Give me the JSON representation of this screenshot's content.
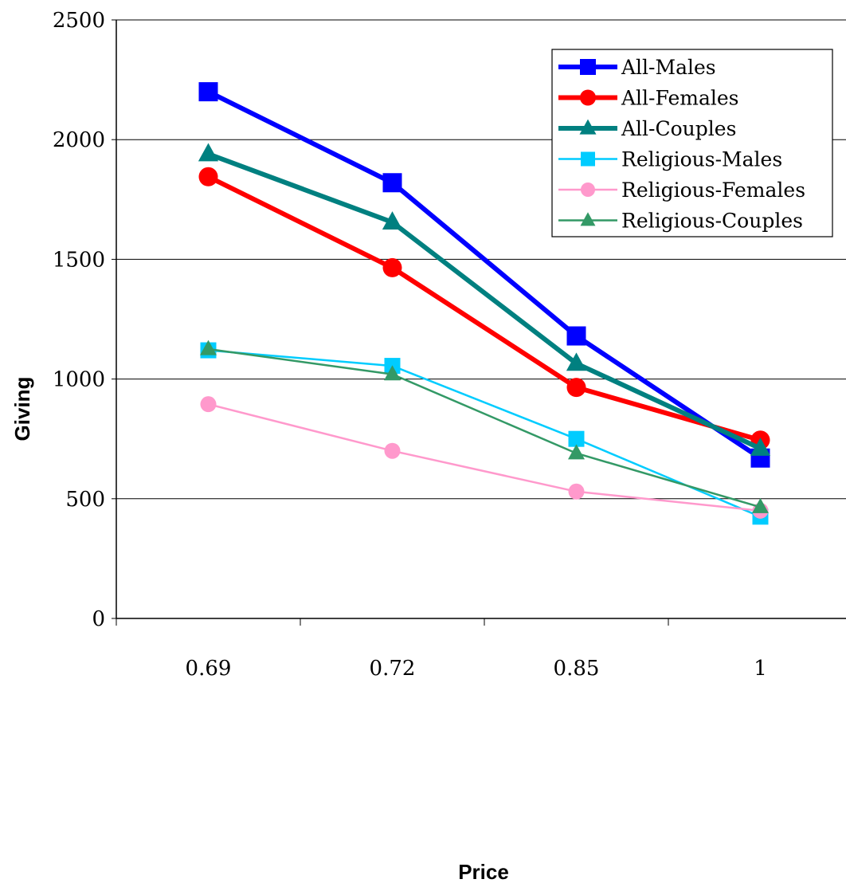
{
  "chart_data": {
    "type": "line",
    "title": "",
    "xlabel": "Price",
    "ylabel": "Giving",
    "categories": [
      "0.69",
      "0.72",
      "0.85",
      "1"
    ],
    "ylim": [
      0,
      2500
    ],
    "yticks": [
      0,
      500,
      1000,
      1500,
      2000,
      2500
    ],
    "grid": "horizontal",
    "legend_position": "top-right",
    "series": [
      {
        "name": "All-Males",
        "values": [
          2200,
          1820,
          1180,
          670
        ],
        "color": "#0000ff",
        "marker": "square",
        "weight": "thick"
      },
      {
        "name": "All-Females",
        "values": [
          1845,
          1465,
          965,
          745
        ],
        "color": "#ff0000",
        "marker": "circle",
        "weight": "thick"
      },
      {
        "name": "All-Couples",
        "values": [
          1940,
          1655,
          1065,
          710
        ],
        "color": "#008080",
        "marker": "triangle",
        "weight": "thick"
      },
      {
        "name": "Religious-Males",
        "values": [
          1120,
          1055,
          750,
          425
        ],
        "color": "#00ccff",
        "marker": "square",
        "weight": "thin"
      },
      {
        "name": "Religious-Females",
        "values": [
          895,
          700,
          530,
          450
        ],
        "color": "#ff99cc",
        "marker": "circle",
        "weight": "thin"
      },
      {
        "name": "Religious-Couples",
        "values": [
          1125,
          1020,
          690,
          465
        ],
        "color": "#339966",
        "marker": "triangle",
        "weight": "thin"
      }
    ]
  }
}
